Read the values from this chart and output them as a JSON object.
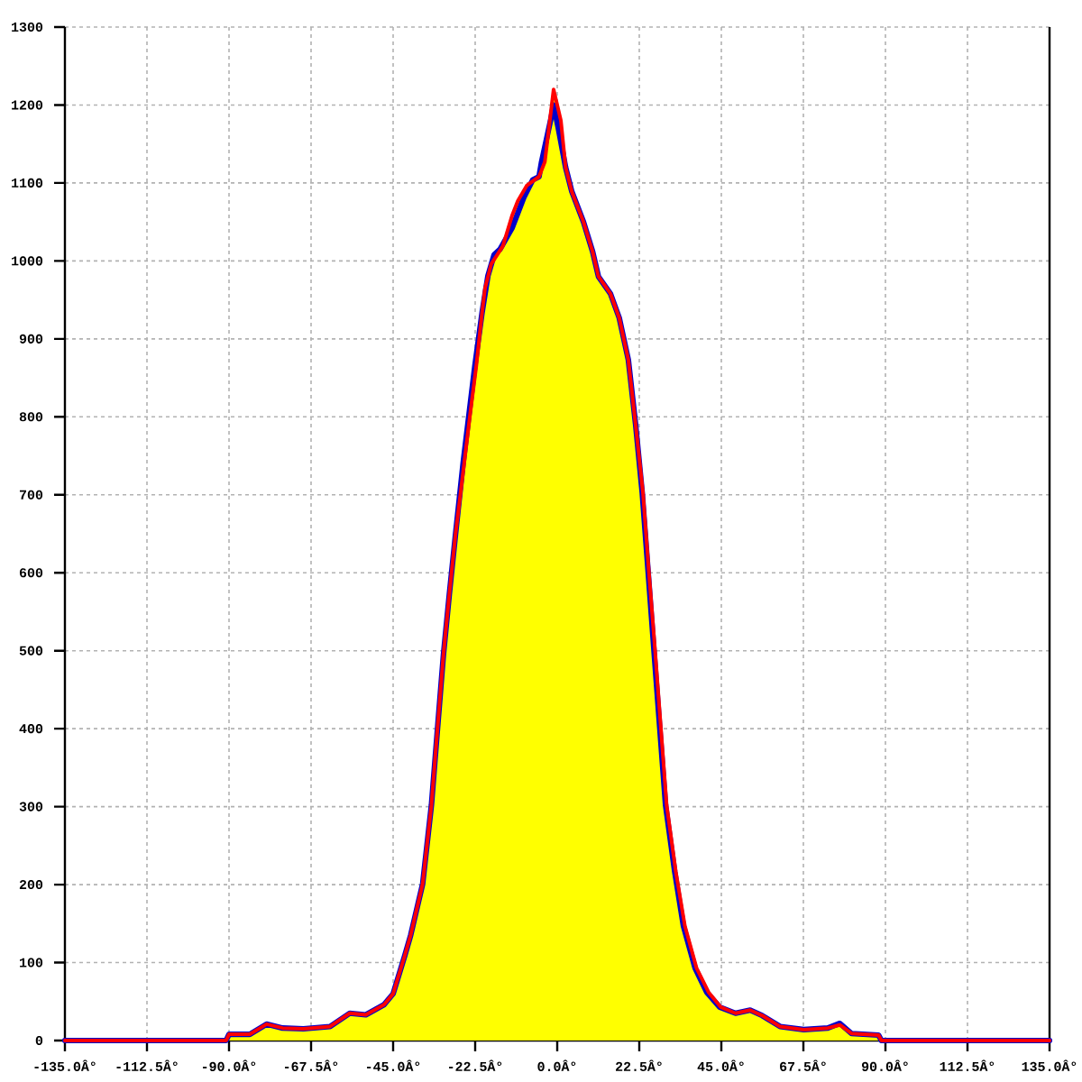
{
  "chart_data": {
    "type": "line",
    "xlim": [
      -135,
      135
    ],
    "ylim": [
      0,
      1300
    ],
    "xticks": [
      {
        "value": -135,
        "label": "-135.0Â°"
      },
      {
        "value": -112.5,
        "label": "-112.5Â°"
      },
      {
        "value": -90,
        "label": "-90.0Â°"
      },
      {
        "value": -67.5,
        "label": "-67.5Â°"
      },
      {
        "value": -45,
        "label": "-45.0Â°"
      },
      {
        "value": -22.5,
        "label": "-22.5Â°"
      },
      {
        "value": 0,
        "label": "0.0Â°"
      },
      {
        "value": 22.5,
        "label": "22.5Â°"
      },
      {
        "value": 45,
        "label": "45.0Â°"
      },
      {
        "value": 67.5,
        "label": "67.5Â°"
      },
      {
        "value": 90,
        "label": "90.0Â°"
      },
      {
        "value": 112.5,
        "label": "112.5Â°"
      },
      {
        "value": 135,
        "label": "135.0Â°"
      }
    ],
    "yticks": [
      0,
      100,
      200,
      300,
      400,
      500,
      600,
      700,
      800,
      900,
      1000,
      1100,
      1200,
      1300
    ],
    "grid": true,
    "series": [
      {
        "type": "area",
        "color": "#ffff00",
        "x": [
          -90.8,
          -90,
          -84.3,
          -79.7,
          -75.3,
          -69.6,
          -62.3,
          -56.9,
          -52.5,
          -47.5,
          -45,
          -41.8,
          -40.2,
          -36.9,
          -34.5,
          -32.8,
          -31.2,
          -29.6,
          -27.9,
          -25.5,
          -23.9,
          -22.2,
          -20.6,
          -19.8,
          -18.1,
          -14.9,
          -12.4,
          -10.8,
          -8.3,
          -5,
          -3.4,
          -1,
          1,
          2.3,
          4,
          7.2,
          9.7,
          11.3,
          14.6,
          17,
          19.5,
          21.5,
          23.5,
          25.1,
          26.8,
          28.4,
          30,
          32.5,
          35,
          38.2,
          41.5,
          44.8,
          48.9,
          52.9,
          56.2,
          61.1,
          67.6,
          74.2,
          77.5,
          80.7,
          88.1,
          88.9
        ],
        "values": [
          0,
          8,
          8,
          21,
          16,
          15,
          18,
          35,
          33,
          46,
          60,
          109,
          135,
          201,
          302,
          402,
          495,
          572,
          649,
          741,
          803,
          865,
          934,
          965,
          996,
          1019,
          1058,
          1077,
          1097,
          1108,
          1127,
          1220,
          1180,
          1120,
          1089,
          1050,
          1012,
          980,
          958,
          927,
          873,
          790,
          703,
          603,
          502,
          402,
          302,
          217,
          147,
          93,
          62,
          43,
          35,
          39,
          32,
          18,
          14,
          16,
          20,
          9,
          7,
          0
        ]
      },
      {
        "color": "#0000cc",
        "x": [
          -135,
          -90.8,
          -90,
          -84.3,
          -79.7,
          -75.3,
          -69.6,
          -62.3,
          -56.9,
          -52.5,
          -47.5,
          -45,
          -41.8,
          -40.2,
          -36.9,
          -34.5,
          -32.8,
          -31.2,
          -29.6,
          -27.9,
          -25.8,
          -24.2,
          -22.6,
          -20.6,
          -19,
          -17.3,
          -15.7,
          -12.4,
          -9.2,
          -6.7,
          -5,
          -4.3,
          -1.8,
          -1,
          0.3,
          2.3,
          4,
          7.2,
          9.7,
          11.3,
          14.6,
          17,
          19.5,
          21.5,
          23.3,
          24.9,
          26.5,
          28.1,
          29.7,
          32.2,
          34.6,
          37.8,
          41,
          44.5,
          48.9,
          52.9,
          56.2,
          61.1,
          67.6,
          74.2,
          77.5,
          80.7,
          88.1,
          88.9,
          135
        ],
        "values": [
          0,
          0,
          8,
          8,
          21,
          16,
          15,
          18,
          35,
          33,
          46,
          60,
          109,
          135,
          201,
          302,
          402,
          495,
          572,
          649,
          741,
          803,
          865,
          934,
          981,
          1008,
          1015,
          1042,
          1081,
          1104,
          1108,
          1127,
          1181,
          1200,
          1170,
          1120,
          1089,
          1050,
          1012,
          980,
          958,
          927,
          873,
          790,
          703,
          603,
          502,
          402,
          302,
          217,
          147,
          93,
          62,
          43,
          35,
          39,
          32,
          18,
          14,
          16,
          22,
          9,
          7,
          0,
          0
        ]
      },
      {
        "color": "#ff0000",
        "x": [
          -135,
          -90.8,
          -90,
          -84.3,
          -79.7,
          -75.3,
          -69.6,
          -62.3,
          -56.9,
          -52.5,
          -47.5,
          -45,
          -41.8,
          -40.2,
          -36.9,
          -34.5,
          -32.8,
          -31.2,
          -29.6,
          -27.9,
          -25.5,
          -23.9,
          -22.2,
          -20.6,
          -19.8,
          -18.1,
          -14.9,
          -12.4,
          -10.8,
          -8.3,
          -5,
          -3.4,
          -1,
          1,
          2.3,
          4,
          7.2,
          9.7,
          11.3,
          14.6,
          17,
          19.5,
          21.5,
          23.5,
          25.1,
          26.8,
          28.4,
          30,
          32.5,
          35,
          38.2,
          41.5,
          44.8,
          48.9,
          52.9,
          56.2,
          61.1,
          67.6,
          74.2,
          77.5,
          80.7,
          88.1,
          88.9,
          135
        ],
        "values": [
          0,
          0,
          8,
          8,
          21,
          16,
          15,
          18,
          35,
          33,
          46,
          60,
          109,
          135,
          201,
          302,
          402,
          495,
          572,
          649,
          741,
          803,
          865,
          934,
          965,
          996,
          1019,
          1058,
          1077,
          1097,
          1108,
          1127,
          1220,
          1180,
          1120,
          1089,
          1050,
          1012,
          980,
          958,
          927,
          873,
          790,
          703,
          603,
          502,
          402,
          302,
          217,
          147,
          93,
          62,
          43,
          35,
          39,
          32,
          18,
          14,
          16,
          20,
          9,
          7,
          0,
          0
        ]
      }
    ]
  }
}
